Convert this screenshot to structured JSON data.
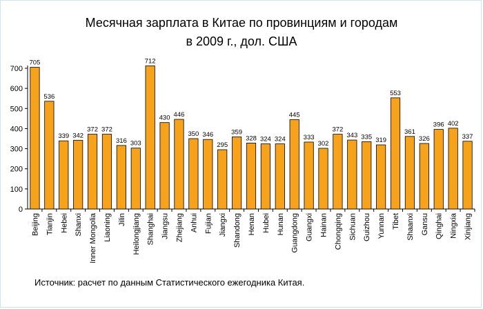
{
  "chart_data": {
    "type": "bar",
    "title_line1": "Месячная зарплата в Китае по провинциям и городам",
    "title_line2": "в 2009 г., дол. США",
    "xlabel": "",
    "ylabel": "",
    "ylim": [
      0,
      700
    ],
    "yticks": [
      0,
      100,
      200,
      300,
      400,
      500,
      600,
      700
    ],
    "categories": [
      "Beijing",
      "Tianjin",
      "Hebei",
      "Shanxi",
      "Inner Mongolia",
      "Liaoning",
      "Jilin",
      "Heilongjiang",
      "Shanghai",
      "Jiangsu",
      "Zhejiang",
      "Anhui",
      "Fujian",
      "Jiangxi",
      "Shandong",
      "Henan",
      "Hubei",
      "Hunan",
      "Guangdong",
      "Guangxi",
      "Hainan",
      "Chongqing",
      "Sichuan",
      "Guizhou",
      "Yunnan",
      "Tibet",
      "Shaanxi",
      "Gansu",
      "Qinghai",
      "Ningxia",
      "Xinjiang"
    ],
    "values": [
      705,
      536,
      339,
      342,
      372,
      372,
      316,
      303,
      712,
      430,
      446,
      350,
      346,
      295,
      359,
      328,
      324,
      324,
      445,
      333,
      302,
      372,
      343,
      335,
      319,
      553,
      361,
      326,
      396,
      402,
      337
    ],
    "bar_color": "#f7a21b",
    "bar_border_color": "#000000",
    "grid": false,
    "legend": "none"
  },
  "source_note": "Источник: расчет по данным Статистического ежегодника Китая."
}
